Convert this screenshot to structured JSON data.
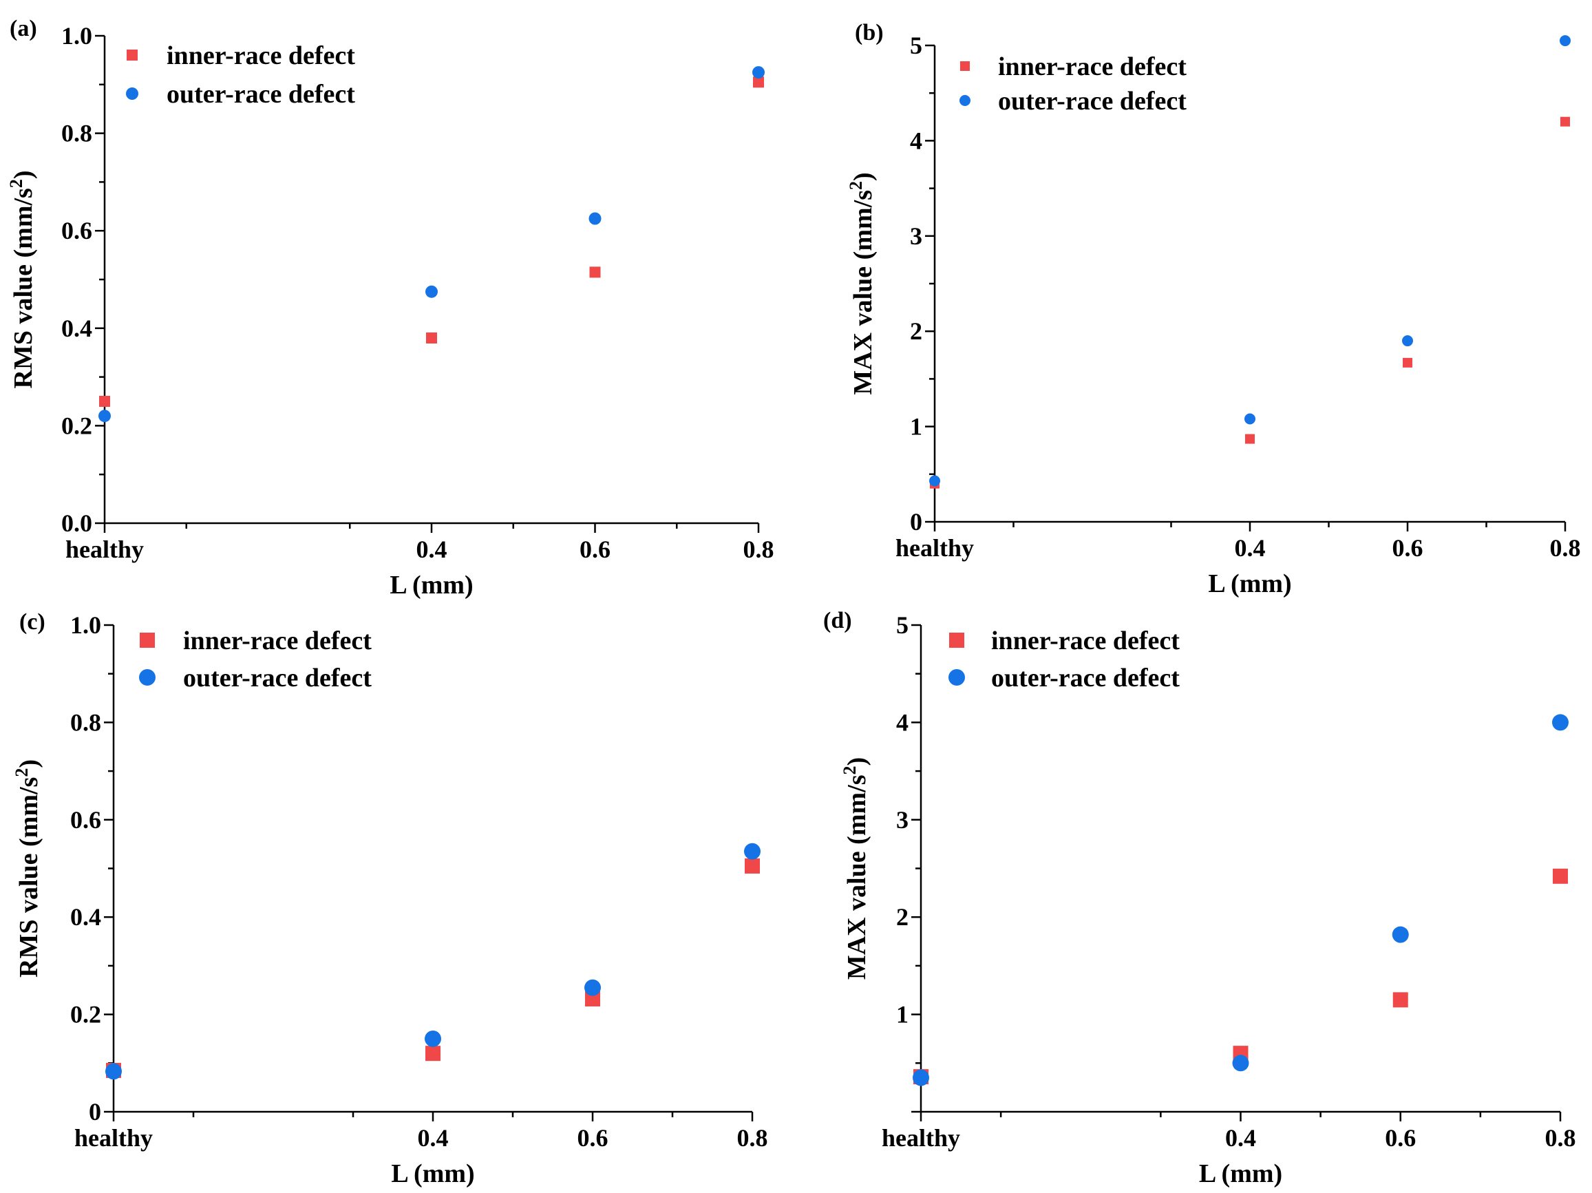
{
  "colors": {
    "inner": "#f04848",
    "outer": "#1673e6",
    "axis": "#000000"
  },
  "chart_data": [
    {
      "type": "scatter",
      "panel_label": "(a)",
      "xlabel": "L (mm)",
      "ylabel": "RMS value (mm/s",
      "ylabel_sup": "2",
      "ylabel_close": ")",
      "x_categories": [
        "healthy",
        "0.4",
        "0.6",
        "0.8"
      ],
      "xlim": [
        0,
        0.8
      ],
      "ylim": [
        0,
        1.0
      ],
      "yticks": [
        0.0,
        0.2,
        0.4,
        0.6,
        0.8,
        1.0
      ],
      "ytick_labels": [
        "0.0",
        "0.2",
        "0.4",
        "0.6",
        "0.8",
        "1.0"
      ],
      "legend_position": "top-left",
      "series": [
        {
          "name": "inner-race defect",
          "marker": "square",
          "x": [
            0,
            0.4,
            0.6,
            0.8
          ],
          "values": [
            0.25,
            0.38,
            0.515,
            0.905
          ]
        },
        {
          "name": "outer-race defect",
          "marker": "circle",
          "x": [
            0,
            0.4,
            0.6,
            0.8
          ],
          "values": [
            0.22,
            0.475,
            0.625,
            0.925
          ]
        }
      ]
    },
    {
      "type": "scatter",
      "panel_label": "(b)",
      "xlabel": "L (mm)",
      "ylabel": "MAX value (mm/s",
      "ylabel_sup": "2",
      "ylabel_close": ")",
      "x_categories": [
        "healthy",
        "0.4",
        "0.6",
        "0.8"
      ],
      "xlim": [
        0,
        0.8
      ],
      "ylim": [
        0,
        5
      ],
      "yticks": [
        0,
        1,
        2,
        3,
        4,
        5
      ],
      "ytick_labels": [
        "0",
        "1",
        "2",
        "3",
        "4",
        "5"
      ],
      "legend_position": "top-left",
      "series": [
        {
          "name": "inner-race defect",
          "marker": "square",
          "x": [
            0,
            0.4,
            0.6,
            0.8
          ],
          "values": [
            0.4,
            0.87,
            1.67,
            4.2
          ]
        },
        {
          "name": "outer-race defect",
          "marker": "circle",
          "x": [
            0,
            0.4,
            0.6,
            0.8
          ],
          "values": [
            0.43,
            1.08,
            1.9,
            5.05
          ]
        }
      ]
    },
    {
      "type": "scatter",
      "panel_label": "(c)",
      "xlabel": "L (mm)",
      "ylabel": "RMS value (mm/s",
      "ylabel_sup": "2",
      "ylabel_close": ")",
      "x_categories": [
        "healthy",
        "0.4",
        "0.6",
        "0.8"
      ],
      "xlim": [
        0,
        0.8
      ],
      "ylim": [
        0,
        1.0
      ],
      "yticks": [
        0,
        0.2,
        0.4,
        0.6,
        0.8,
        1.0
      ],
      "ytick_labels": [
        "0",
        "0.2",
        "0.4",
        "0.6",
        "0.8",
        "1.0"
      ],
      "legend_position": "top-left",
      "series": [
        {
          "name": "inner-race defect",
          "marker": "square",
          "x": [
            0,
            0.4,
            0.6,
            0.8
          ],
          "values": [
            0.085,
            0.12,
            0.232,
            0.505
          ]
        },
        {
          "name": "outer-race defect",
          "marker": "circle",
          "x": [
            0,
            0.4,
            0.6,
            0.8
          ],
          "values": [
            0.083,
            0.15,
            0.255,
            0.535
          ]
        }
      ]
    },
    {
      "type": "scatter",
      "panel_label": "(d)",
      "xlabel": "L (mm)",
      "ylabel": "MAX value (mm/s",
      "ylabel_sup": "2",
      "ylabel_close": ")",
      "x_categories": [
        "healthy",
        "0.4",
        "0.6",
        "0.8"
      ],
      "xlim": [
        0,
        0.8
      ],
      "ylim": [
        0,
        5
      ],
      "yticks": [
        1,
        2,
        3,
        4,
        5
      ],
      "ytick_labels": [
        "1",
        "2",
        "3",
        "4",
        "5"
      ],
      "legend_position": "top-left",
      "series": [
        {
          "name": "inner-race defect",
          "marker": "square",
          "x": [
            0,
            0.4,
            0.6,
            0.8
          ],
          "values": [
            0.36,
            0.6,
            1.15,
            2.42
          ]
        },
        {
          "name": "outer-race defect",
          "marker": "circle",
          "x": [
            0,
            0.4,
            0.6,
            0.8
          ],
          "values": [
            0.35,
            0.5,
            1.82,
            4.0
          ]
        }
      ]
    }
  ]
}
